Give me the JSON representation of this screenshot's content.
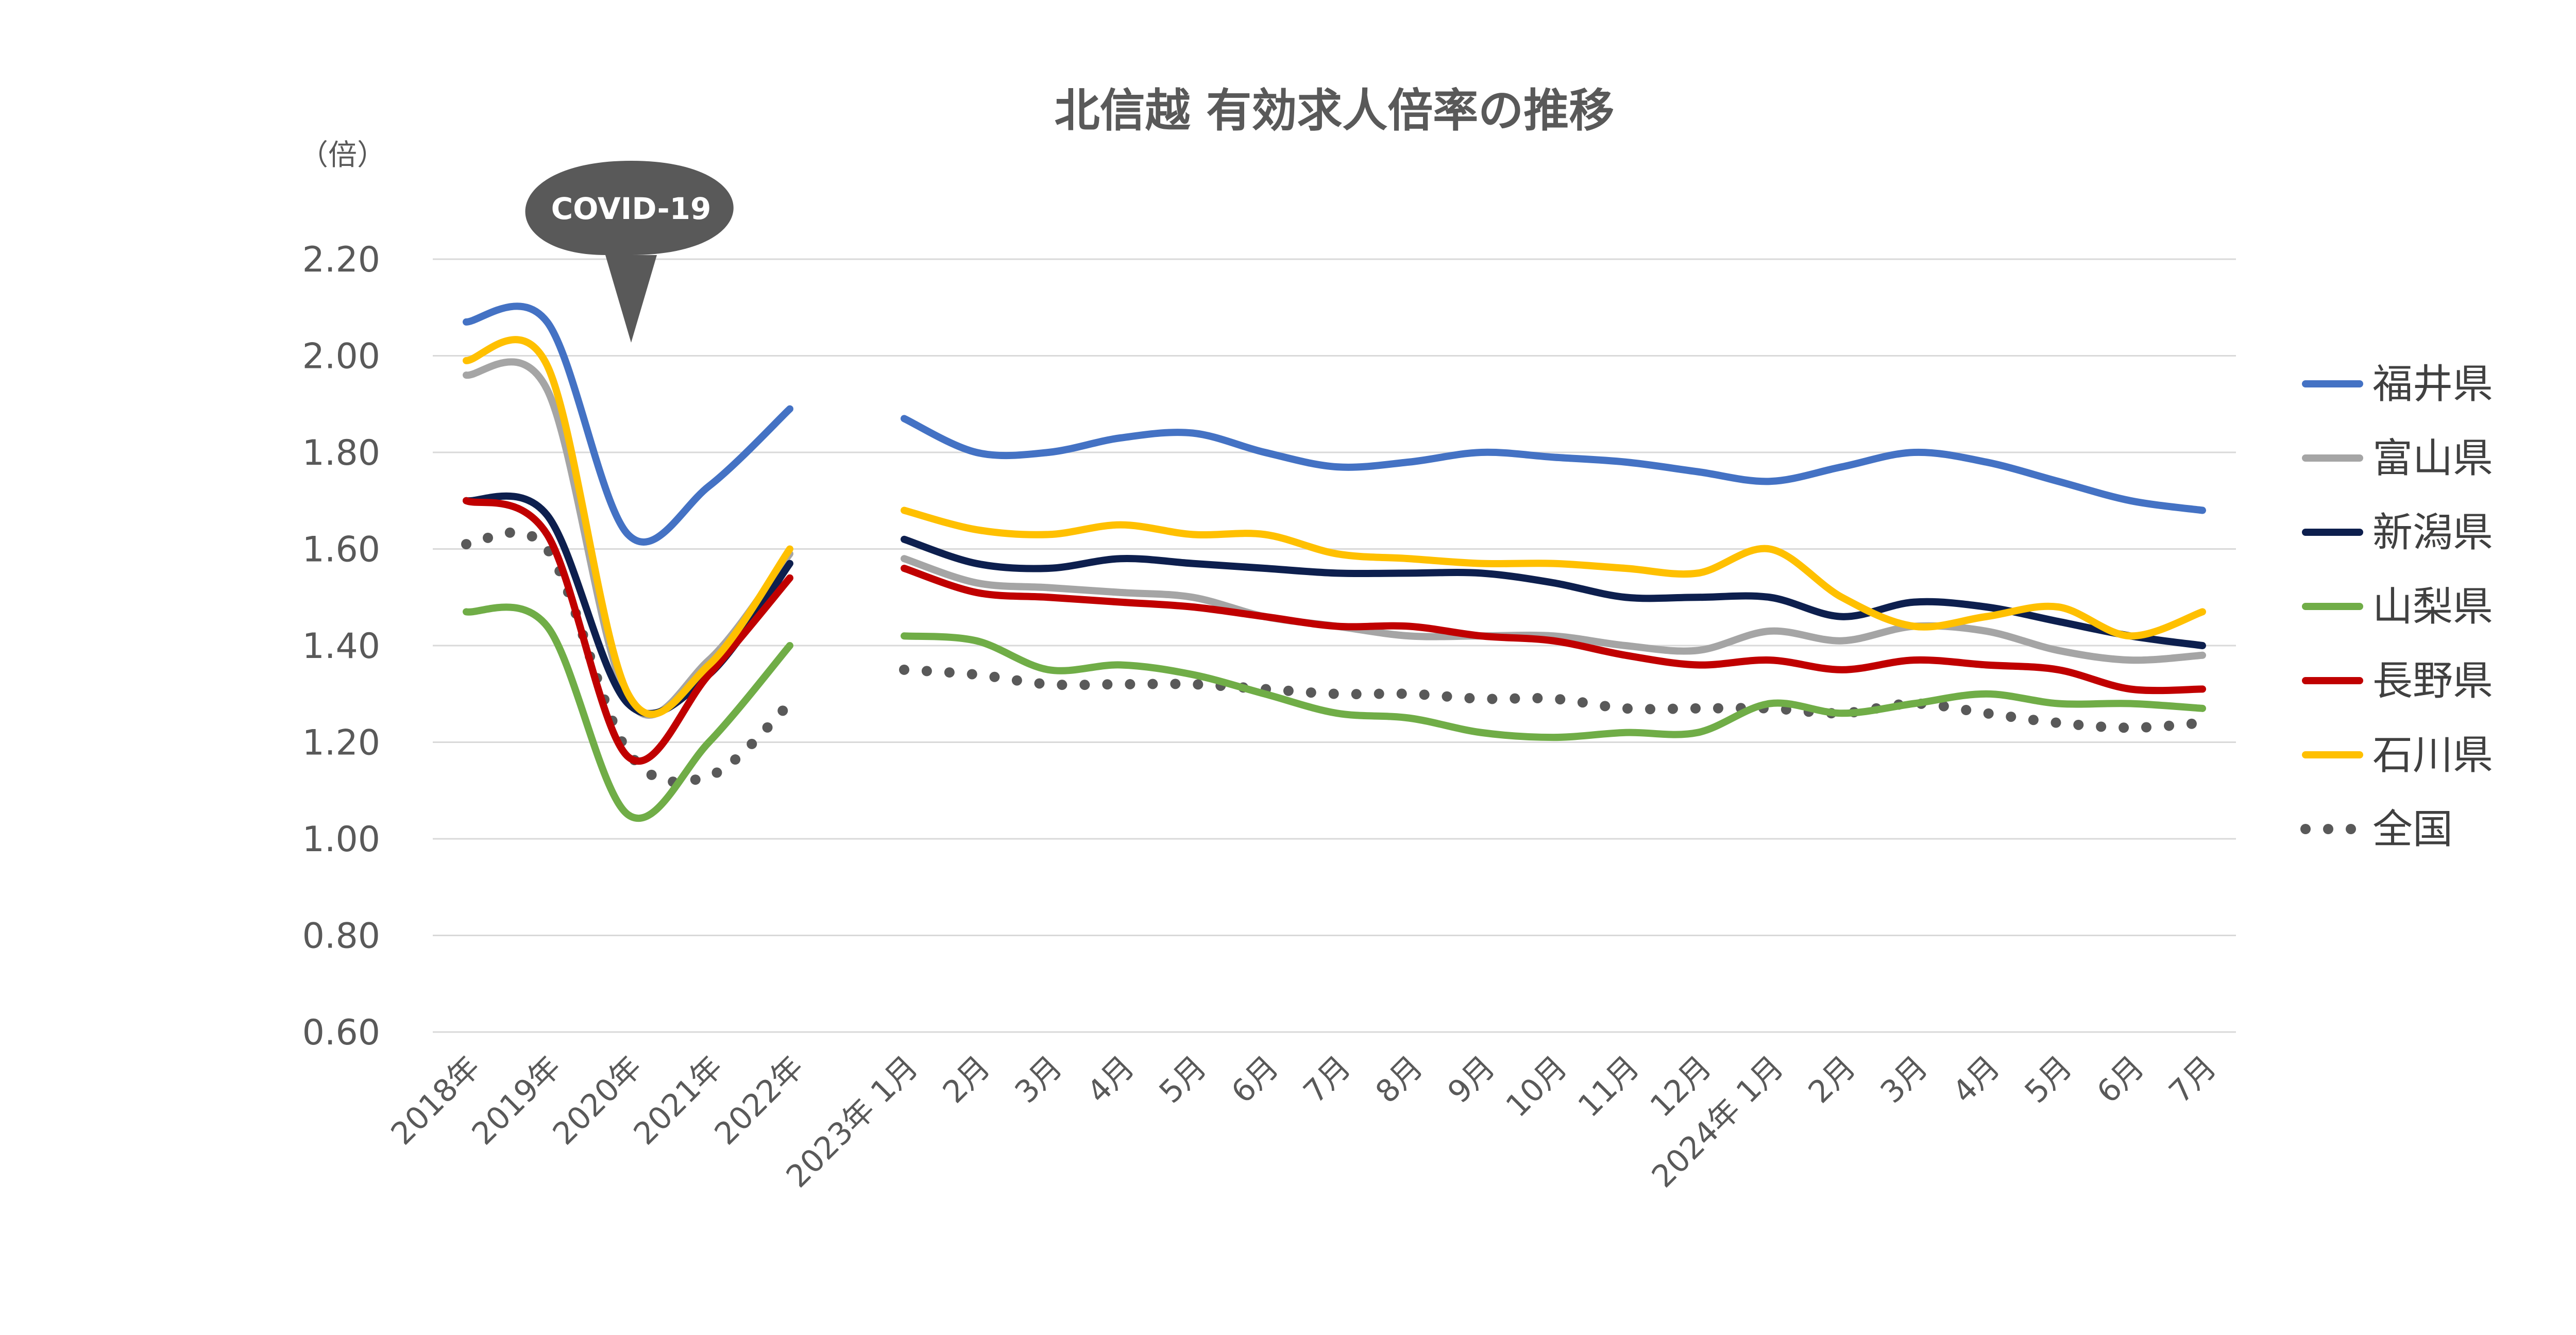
{
  "chart_data": {
    "type": "line",
    "title": "北信越 有効求人倍率の推移",
    "unit_label": "（倍）",
    "annotation": "COVID-19",
    "ylim": [
      0.6,
      2.2
    ],
    "yticks": [
      "0.60",
      "0.80",
      "1.00",
      "1.20",
      "1.40",
      "1.60",
      "1.80",
      "2.00",
      "2.20"
    ],
    "grid": true,
    "legend_position": "right",
    "groups": [
      {
        "name": "annual",
        "categories": [
          "2018年",
          "2019年",
          "2020年",
          "2021年",
          "2022年"
        ]
      },
      {
        "name": "monthly",
        "categories": [
          "2023年 1月",
          "2月",
          "3月",
          "4月",
          "5月",
          "6月",
          "7月",
          "8月",
          "9月",
          "10月",
          "11月",
          "12月",
          "2024年 1月",
          "2月",
          "3月",
          "4月",
          "5月",
          "6月",
          "7月"
        ]
      }
    ],
    "series": [
      {
        "name": "福井県",
        "color": "#4472C4",
        "style": "solid",
        "annual": [
          2.07,
          2.07,
          1.63,
          1.73,
          1.89
        ],
        "monthly": [
          1.87,
          1.8,
          1.8,
          1.83,
          1.84,
          1.8,
          1.77,
          1.78,
          1.8,
          1.79,
          1.78,
          1.76,
          1.74,
          1.77,
          1.8,
          1.78,
          1.74,
          1.7,
          1.68
        ]
      },
      {
        "name": "富山県",
        "color": "#A5A5A5",
        "style": "solid",
        "annual": [
          1.96,
          1.93,
          1.29,
          1.37,
          1.59
        ],
        "monthly": [
          1.58,
          1.53,
          1.52,
          1.51,
          1.5,
          1.46,
          1.44,
          1.42,
          1.42,
          1.42,
          1.4,
          1.39,
          1.43,
          1.41,
          1.44,
          1.43,
          1.39,
          1.37,
          1.38
        ]
      },
      {
        "name": "新潟県",
        "color": "#0D1F4E",
        "style": "solid",
        "annual": [
          1.7,
          1.67,
          1.28,
          1.34,
          1.57
        ],
        "monthly": [
          1.62,
          1.57,
          1.56,
          1.58,
          1.57,
          1.56,
          1.55,
          1.55,
          1.55,
          1.53,
          1.5,
          1.5,
          1.5,
          1.46,
          1.49,
          1.48,
          1.45,
          1.42,
          1.4
        ]
      },
      {
        "name": "山梨県",
        "color": "#70AD47",
        "style": "solid",
        "annual": [
          1.47,
          1.44,
          1.05,
          1.2,
          1.4
        ],
        "monthly": [
          1.42,
          1.41,
          1.35,
          1.36,
          1.34,
          1.3,
          1.26,
          1.25,
          1.22,
          1.21,
          1.22,
          1.22,
          1.28,
          1.26,
          1.28,
          1.3,
          1.28,
          1.28,
          1.27
        ]
      },
      {
        "name": "長野県",
        "color": "#C00000",
        "style": "solid",
        "annual": [
          1.7,
          1.63,
          1.17,
          1.34,
          1.54
        ],
        "monthly": [
          1.56,
          1.51,
          1.5,
          1.49,
          1.48,
          1.46,
          1.44,
          1.44,
          1.42,
          1.41,
          1.38,
          1.36,
          1.37,
          1.35,
          1.37,
          1.36,
          1.35,
          1.31,
          1.31
        ]
      },
      {
        "name": "石川県",
        "color": "#FFC000",
        "style": "solid",
        "annual": [
          1.99,
          1.98,
          1.3,
          1.36,
          1.6
        ],
        "monthly": [
          1.68,
          1.64,
          1.63,
          1.65,
          1.63,
          1.63,
          1.59,
          1.58,
          1.57,
          1.57,
          1.56,
          1.55,
          1.6,
          1.5,
          1.44,
          1.46,
          1.48,
          1.42,
          1.47
        ]
      },
      {
        "name": "全国",
        "color": "#595959",
        "style": "dotted",
        "annual": [
          1.61,
          1.6,
          1.18,
          1.13,
          1.28
        ],
        "monthly": [
          1.35,
          1.34,
          1.32,
          1.32,
          1.32,
          1.31,
          1.3,
          1.3,
          1.29,
          1.29,
          1.27,
          1.27,
          1.27,
          1.26,
          1.28,
          1.26,
          1.24,
          1.23,
          1.24
        ]
      }
    ]
  }
}
